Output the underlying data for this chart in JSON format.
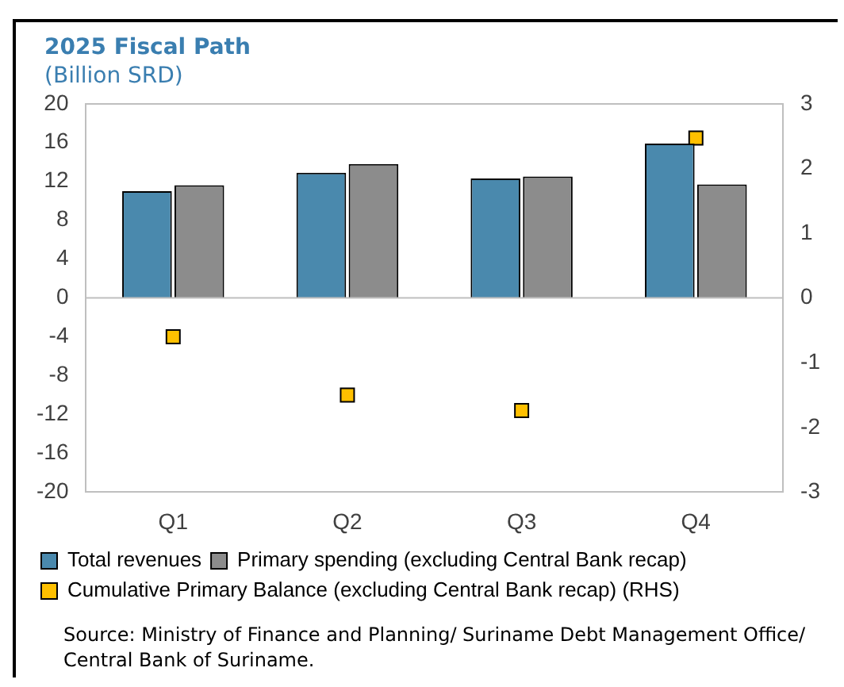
{
  "chart_data": {
    "type": "bar",
    "title": "2025 Fiscal Path",
    "subtitle": "(Billion SRD)",
    "categories": [
      "Q1",
      "Q2",
      "Q3",
      "Q4"
    ],
    "series": [
      {
        "name": "Total revenues",
        "color": "#4a89ad",
        "values": [
          11.0,
          12.9,
          12.3,
          15.9
        ]
      },
      {
        "name": "Primary spending (excluding Central Bank recap)",
        "color": "#8c8c8c",
        "values": [
          11.6,
          13.8,
          12.5,
          11.7
        ]
      },
      {
        "name": "Cumulative Primary Balance (excluding Central Bank recap) (RHS)",
        "type": "scatter",
        "axis": "y2",
        "color": "#ffc000",
        "values": [
          -0.6,
          -1.5,
          -1.74,
          2.47
        ]
      }
    ],
    "ylim": [
      -20,
      20
    ],
    "yticks": [
      -20,
      -16,
      -12,
      -8,
      -4,
      0,
      4,
      8,
      12,
      16,
      20
    ],
    "y2lim": [
      -3,
      3
    ],
    "y2ticks": [
      -3,
      -2,
      -1,
      0,
      1,
      2,
      3
    ],
    "grid": false,
    "ref_lines": [
      {
        "axis": "y",
        "value": 0,
        "color": "#bfbfbf"
      }
    ],
    "legend": "bottom",
    "marker": "square",
    "annotations": [
      "Source: Ministry of Finance and Planning/ Suriname Debt Management Office/ Central Bank of Suriname."
    ]
  }
}
